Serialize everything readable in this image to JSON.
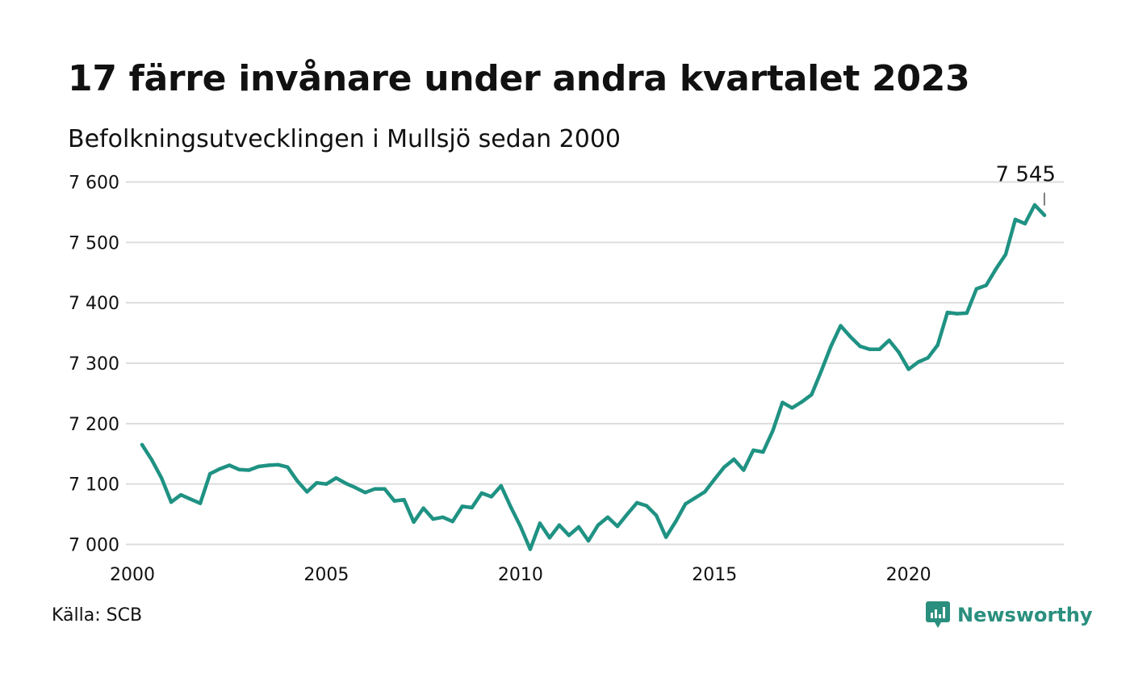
{
  "header": {
    "title": "17 färre invånare under andra kvartalet 2023",
    "subtitle": "Befolkningsutvecklingen i Mullsjö sedan 2000"
  },
  "footer": {
    "source": "Källa: SCB",
    "brand": "Newsworthy",
    "brand_icon": "newsworthy-logo-icon"
  },
  "colors": {
    "line": "#1f9283",
    "grid": "#dddddd",
    "text": "#111111",
    "brand": "#2a8f7e"
  },
  "chart_data": {
    "type": "line",
    "title": "17 färre invånare under andra kvartalet 2023",
    "subtitle": "Befolkningsutvecklingen i Mullsjö sedan 2000",
    "xlabel": "",
    "ylabel": "",
    "xlim": [
      2000,
      2024
    ],
    "ylim": [
      6990,
      7610
    ],
    "grid": true,
    "legend": "none",
    "x_ticks": [
      2000,
      2005,
      2010,
      2015,
      2020
    ],
    "x_tick_labels": [
      "2000",
      "2005",
      "2010",
      "2015",
      "2020"
    ],
    "y_ticks": [
      7000,
      7100,
      7200,
      7300,
      7400,
      7500,
      7600
    ],
    "y_tick_labels": [
      "7 000",
      "7 100",
      "7 200",
      "7 300",
      "7 400",
      "7 500",
      "7 600"
    ],
    "annotations": [
      {
        "x": 2023.5,
        "y": 7545,
        "text": "7 545"
      }
    ],
    "series": [
      {
        "values": [
          [
            2000.25,
            7165
          ],
          [
            2000.5,
            7140
          ],
          [
            2000.75,
            7110
          ],
          [
            2001.0,
            7070
          ],
          [
            2001.25,
            7082
          ],
          [
            2001.5,
            7075
          ],
          [
            2001.75,
            7068
          ],
          [
            2002.0,
            7117
          ],
          [
            2002.25,
            7125
          ],
          [
            2002.5,
            7131
          ],
          [
            2002.75,
            7124
          ],
          [
            2003.0,
            7123
          ],
          [
            2003.25,
            7129
          ],
          [
            2003.5,
            7131
          ],
          [
            2003.75,
            7132
          ],
          [
            2004.0,
            7128
          ],
          [
            2004.25,
            7105
          ],
          [
            2004.5,
            7087
          ],
          [
            2004.75,
            7102
          ],
          [
            2005.0,
            7100
          ],
          [
            2005.25,
            7110
          ],
          [
            2005.5,
            7101
          ],
          [
            2005.75,
            7094
          ],
          [
            2006.0,
            7086
          ],
          [
            2006.25,
            7092
          ],
          [
            2006.5,
            7092
          ],
          [
            2006.75,
            7072
          ],
          [
            2007.0,
            7074
          ],
          [
            2007.25,
            7037
          ],
          [
            2007.5,
            7060
          ],
          [
            2007.75,
            7042
          ],
          [
            2008.0,
            7045
          ],
          [
            2008.25,
            7038
          ],
          [
            2008.5,
            7063
          ],
          [
            2008.75,
            7061
          ],
          [
            2009.0,
            7085
          ],
          [
            2009.25,
            7079
          ],
          [
            2009.5,
            7097
          ],
          [
            2009.75,
            7062
          ],
          [
            2010.0,
            7030
          ],
          [
            2010.25,
            6992
          ],
          [
            2010.5,
            7035
          ],
          [
            2010.75,
            7011
          ],
          [
            2011.0,
            7032
          ],
          [
            2011.25,
            7015
          ],
          [
            2011.5,
            7029
          ],
          [
            2011.75,
            7006
          ],
          [
            2012.0,
            7032
          ],
          [
            2012.25,
            7045
          ],
          [
            2012.5,
            7030
          ],
          [
            2012.75,
            7050
          ],
          [
            2013.0,
            7069
          ],
          [
            2013.25,
            7064
          ],
          [
            2013.5,
            7048
          ],
          [
            2013.75,
            7012
          ],
          [
            2014.0,
            7038
          ],
          [
            2014.25,
            7067
          ],
          [
            2014.5,
            7077
          ],
          [
            2014.75,
            7087
          ],
          [
            2015.0,
            7108
          ],
          [
            2015.25,
            7128
          ],
          [
            2015.5,
            7141
          ],
          [
            2015.75,
            7123
          ],
          [
            2016.0,
            7156
          ],
          [
            2016.25,
            7153
          ],
          [
            2016.5,
            7188
          ],
          [
            2016.75,
            7235
          ],
          [
            2017.0,
            7226
          ],
          [
            2017.25,
            7236
          ],
          [
            2017.5,
            7248
          ],
          [
            2017.75,
            7287
          ],
          [
            2018.0,
            7328
          ],
          [
            2018.25,
            7362
          ],
          [
            2018.5,
            7344
          ],
          [
            2018.75,
            7328
          ],
          [
            2019.0,
            7323
          ],
          [
            2019.25,
            7323
          ],
          [
            2019.5,
            7338
          ],
          [
            2019.75,
            7318
          ],
          [
            2020.0,
            7290
          ],
          [
            2020.25,
            7302
          ],
          [
            2020.5,
            7309
          ],
          [
            2020.75,
            7330
          ],
          [
            2021.0,
            7384
          ],
          [
            2021.25,
            7382
          ],
          [
            2021.5,
            7383
          ],
          [
            2021.75,
            7423
          ],
          [
            2022.0,
            7429
          ],
          [
            2022.25,
            7456
          ],
          [
            2022.5,
            7480
          ],
          [
            2022.75,
            7538
          ],
          [
            2023.0,
            7531
          ],
          [
            2023.25,
            7562
          ],
          [
            2023.5,
            7545
          ]
        ]
      }
    ]
  }
}
